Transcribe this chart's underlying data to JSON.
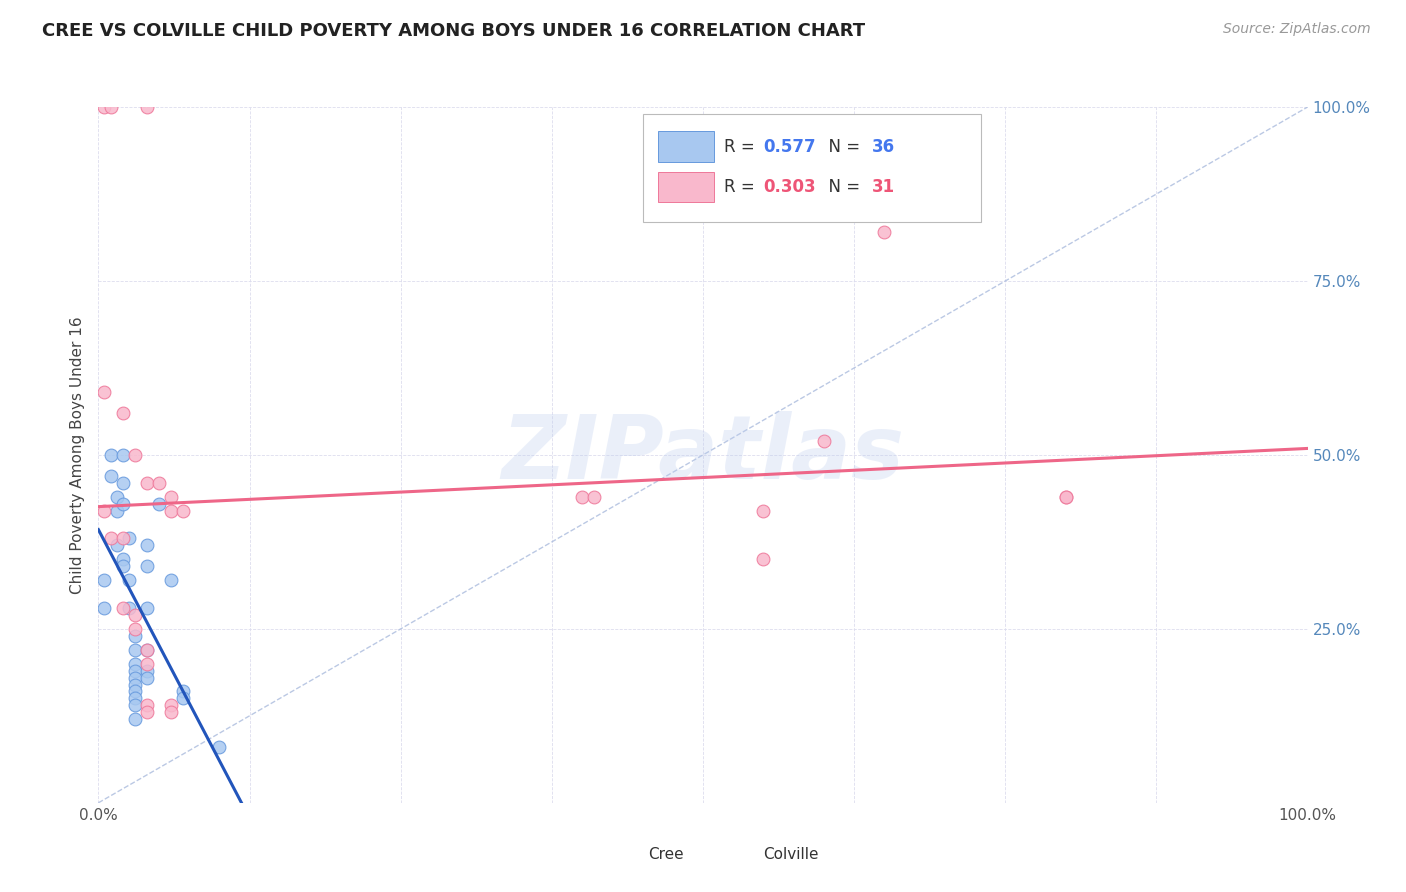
{
  "title": "CREE VS COLVILLE CHILD POVERTY AMONG BOYS UNDER 16 CORRELATION CHART",
  "source": "Source: ZipAtlas.com",
  "ylabel": "Child Poverty Among Boys Under 16",
  "xlim": [
    0,
    1
  ],
  "ylim": [
    0,
    1
  ],
  "xticks": [
    0,
    0.125,
    0.25,
    0.375,
    0.5,
    0.625,
    0.75,
    0.875,
    1.0
  ],
  "yticks": [
    0,
    0.25,
    0.5,
    0.75,
    1.0
  ],
  "watermark": "ZIPatlas",
  "cree_color": "#A8C8F0",
  "colville_color": "#F9B8CC",
  "cree_edge_color": "#6699DD",
  "colville_edge_color": "#EE7799",
  "regression_cree_color": "#2255BB",
  "regression_colville_color": "#EE6688",
  "diag_color": "#AABBDD",
  "R_cree": 0.577,
  "N_cree": 36,
  "R_colville": 0.303,
  "N_colville": 31,
  "cree_points": [
    [
      0.005,
      0.32
    ],
    [
      0.005,
      0.28
    ],
    [
      0.01,
      0.47
    ],
    [
      0.01,
      0.5
    ],
    [
      0.015,
      0.44
    ],
    [
      0.015,
      0.42
    ],
    [
      0.015,
      0.37
    ],
    [
      0.02,
      0.5
    ],
    [
      0.02,
      0.46
    ],
    [
      0.02,
      0.43
    ],
    [
      0.02,
      0.35
    ],
    [
      0.02,
      0.34
    ],
    [
      0.025,
      0.38
    ],
    [
      0.025,
      0.32
    ],
    [
      0.025,
      0.28
    ],
    [
      0.03,
      0.24
    ],
    [
      0.03,
      0.22
    ],
    [
      0.03,
      0.2
    ],
    [
      0.03,
      0.19
    ],
    [
      0.03,
      0.18
    ],
    [
      0.03,
      0.17
    ],
    [
      0.03,
      0.16
    ],
    [
      0.03,
      0.15
    ],
    [
      0.03,
      0.14
    ],
    [
      0.03,
      0.12
    ],
    [
      0.04,
      0.37
    ],
    [
      0.04,
      0.34
    ],
    [
      0.04,
      0.28
    ],
    [
      0.04,
      0.22
    ],
    [
      0.04,
      0.19
    ],
    [
      0.04,
      0.18
    ],
    [
      0.05,
      0.43
    ],
    [
      0.06,
      0.32
    ],
    [
      0.07,
      0.16
    ],
    [
      0.07,
      0.15
    ],
    [
      0.1,
      0.08
    ]
  ],
  "colville_points": [
    [
      0.005,
      1.0
    ],
    [
      0.01,
      1.0
    ],
    [
      0.04,
      1.0
    ],
    [
      0.005,
      0.59
    ],
    [
      0.02,
      0.56
    ],
    [
      0.03,
      0.5
    ],
    [
      0.04,
      0.46
    ],
    [
      0.05,
      0.46
    ],
    [
      0.06,
      0.44
    ],
    [
      0.06,
      0.42
    ],
    [
      0.07,
      0.42
    ],
    [
      0.005,
      0.42
    ],
    [
      0.01,
      0.38
    ],
    [
      0.02,
      0.38
    ],
    [
      0.02,
      0.28
    ],
    [
      0.03,
      0.27
    ],
    [
      0.03,
      0.25
    ],
    [
      0.04,
      0.22
    ],
    [
      0.04,
      0.2
    ],
    [
      0.04,
      0.14
    ],
    [
      0.04,
      0.13
    ],
    [
      0.06,
      0.14
    ],
    [
      0.06,
      0.13
    ],
    [
      0.4,
      0.44
    ],
    [
      0.41,
      0.44
    ],
    [
      0.55,
      0.42
    ],
    [
      0.55,
      0.35
    ],
    [
      0.6,
      0.52
    ],
    [
      0.65,
      0.82
    ],
    [
      0.8,
      0.44
    ],
    [
      0.8,
      0.44
    ]
  ],
  "background_color": "#FFFFFF",
  "grid_color": "#DDDDEE",
  "marker_size": 85,
  "title_fontsize": 13,
  "label_fontsize": 11,
  "tick_color": "#5588BB"
}
